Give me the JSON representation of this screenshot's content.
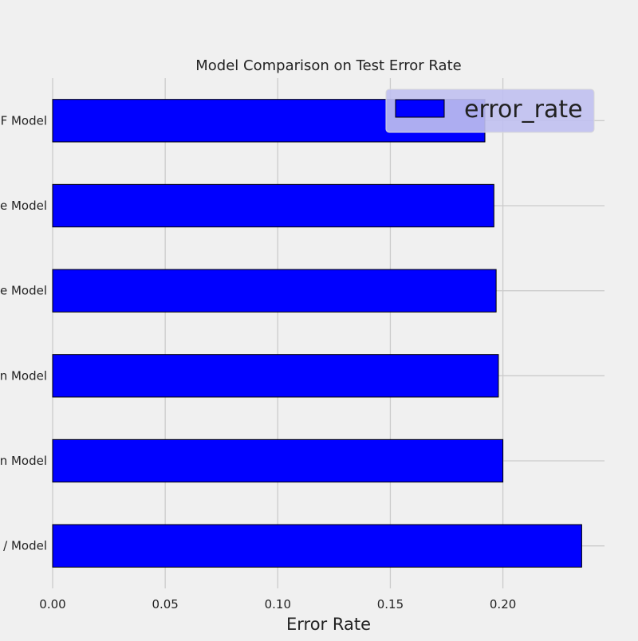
{
  "chart_data": {
    "type": "bar",
    "orientation": "horizontal",
    "title": "Model Comparison on Test Error Rate",
    "xlabel": "Error Rate",
    "ylabel": "",
    "categories": [
      "F Model",
      "e Model",
      "e Model",
      "n Model",
      "n Model",
      "/ Model"
    ],
    "series": [
      {
        "name": "error_rate",
        "values": [
          0.192,
          0.196,
          0.197,
          0.198,
          0.2,
          0.235
        ],
        "color": "#0000ff"
      }
    ],
    "xlim": [
      0.0,
      0.245
    ],
    "xticks": [
      0.0,
      0.05,
      0.1,
      0.15,
      0.2
    ],
    "xtick_labels": [
      "0.00",
      "0.05",
      "0.10",
      "0.15",
      "0.20"
    ],
    "grid": true,
    "legend": {
      "position": "top-right",
      "entries": [
        "error_rate"
      ]
    },
    "colors": {
      "background": "#f0f0f0",
      "bar_fill": "#0000ff",
      "bar_edge": "#000000",
      "grid": "#cbcbcb",
      "legend_bg": "#c0c0f0"
    }
  }
}
